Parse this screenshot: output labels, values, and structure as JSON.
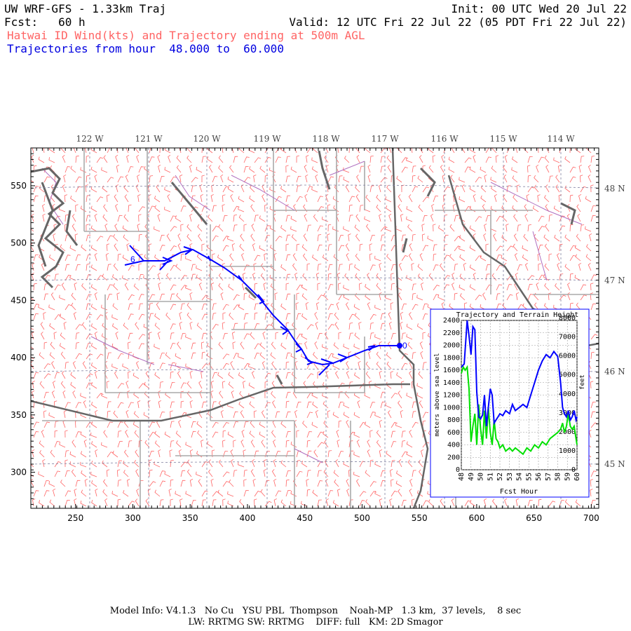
{
  "header": {
    "model_title": "UW WRF-GFS - 1.33km Traj",
    "init": "Init: 00 UTC Wed 20 Jul 22",
    "fcst": "Fcst:   60 h",
    "valid": "Valid: 12 UTC Fri 22 Jul 22 (05 PDT Fri 22 Jul 22)",
    "subtitle": "Hatwai ID Wind(kts) and Trajectory ending at 500m AGL",
    "traj_range": "Trajectories from hour  48.000 to  60.000"
  },
  "map": {
    "lon_labels": [
      "122 W",
      "121 W",
      "120 W",
      "119 W",
      "118 W",
      "117 W",
      "116 W",
      "115 W",
      "114 W"
    ],
    "lat_labels": [
      "48 N",
      "47 N",
      "46 N",
      "45 N"
    ],
    "y_axis_ticks": [
      "550",
      "500",
      "450",
      "400",
      "350",
      "300"
    ],
    "x_axis_ticks": [
      "250",
      "300",
      "350",
      "400",
      "450",
      "500",
      "550",
      "600",
      "650",
      "700"
    ],
    "start_label": "6",
    "end_label": "0",
    "colors": {
      "wind": "#ff6464",
      "trajectory": "#0000ff",
      "state_border": "#555555",
      "county": "#aaaaaa",
      "terrain": "#888888"
    }
  },
  "inset": {
    "title": "Trajectory and Terrain Height",
    "ylabel_left": "meters above sea level",
    "ylabel_right": "feet",
    "xlabel": "Fcst Hour",
    "y_ticks_m": [
      "2400",
      "2200",
      "2000",
      "1800",
      "1600",
      "1400",
      "1200",
      "1000",
      "800",
      "600",
      "400",
      "200",
      "0"
    ],
    "y_ticks_ft": [
      "8000",
      "7000",
      "6000",
      "5000",
      "4000",
      "3000",
      "2000",
      "1000",
      "0"
    ],
    "x_ticks": [
      "48",
      "49",
      "50",
      "51",
      "52",
      "53",
      "54",
      "55",
      "56",
      "57",
      "58",
      "59",
      "60"
    ]
  },
  "chart_data": {
    "type": "line",
    "title": "Trajectory and Terrain Height",
    "xlabel": "Fcst Hour",
    "ylabel": "meters above sea level",
    "xlim": [
      48,
      60
    ],
    "ylim": [
      0,
      2400
    ],
    "series": [
      {
        "name": "trajectory",
        "color": "#0000ff",
        "x": [
          48,
          48.3,
          48.6,
          48.8,
          49.0,
          49.2,
          49.4,
          49.6,
          49.8,
          50.0,
          50.2,
          50.4,
          50.6,
          50.8,
          51.0,
          51.2,
          51.4,
          51.6,
          51.8,
          52.0,
          52.3,
          52.6,
          53.0,
          53.3,
          53.6,
          54.0,
          54.4,
          54.8,
          55.2,
          55.6,
          56.0,
          56.4,
          56.8,
          57.2,
          57.6,
          58.0,
          58.3,
          58.5,
          58.7,
          58.9,
          59.1,
          59.3,
          59.5,
          59.7,
          59.9,
          60.0
        ],
        "y": [
          1650,
          1700,
          2400,
          2150,
          1850,
          2300,
          2250,
          1250,
          850,
          820,
          880,
          1200,
          700,
          1000,
          1300,
          1200,
          750,
          800,
          850,
          900,
          870,
          950,
          900,
          1050,
          950,
          1000,
          1050,
          1000,
          1200,
          1400,
          1600,
          1750,
          1850,
          1800,
          1900,
          1820,
          1400,
          1000,
          900,
          850,
          950,
          800,
          850,
          950,
          800,
          850
        ]
      },
      {
        "name": "terrain",
        "color": "#00e000",
        "x": [
          48,
          48.2,
          48.4,
          48.6,
          48.8,
          49.0,
          49.2,
          49.4,
          49.6,
          49.8,
          50.0,
          50.2,
          50.4,
          50.6,
          50.8,
          51.0,
          51.2,
          51.4,
          51.6,
          51.8,
          52.0,
          52.3,
          52.6,
          53.0,
          53.3,
          53.6,
          54.0,
          54.4,
          54.8,
          55.2,
          55.6,
          56.0,
          56.4,
          56.8,
          57.2,
          57.6,
          58.0,
          58.3,
          58.5,
          58.7,
          58.9,
          59.1,
          59.3,
          59.5,
          59.7,
          59.9,
          60.0
        ],
        "y": [
          1550,
          1650,
          1600,
          1650,
          1300,
          450,
          700,
          900,
          400,
          1050,
          650,
          400,
          950,
          500,
          1000,
          600,
          400,
          800,
          500,
          450,
          350,
          400,
          300,
          350,
          300,
          350,
          300,
          250,
          350,
          300,
          400,
          350,
          450,
          400,
          500,
          550,
          600,
          650,
          750,
          600,
          700,
          900,
          700,
          650,
          700,
          500,
          400
        ]
      }
    ]
  },
  "footer": {
    "line1": "Model Info: V4.1.3   No Cu   YSU PBL  Thompson    Noah-MP   1.3 km,  37 levels,    8 sec",
    "line2": "LW: RRTMG SW: RRTMG    DIFF: full   KM: 2D Smagor"
  }
}
